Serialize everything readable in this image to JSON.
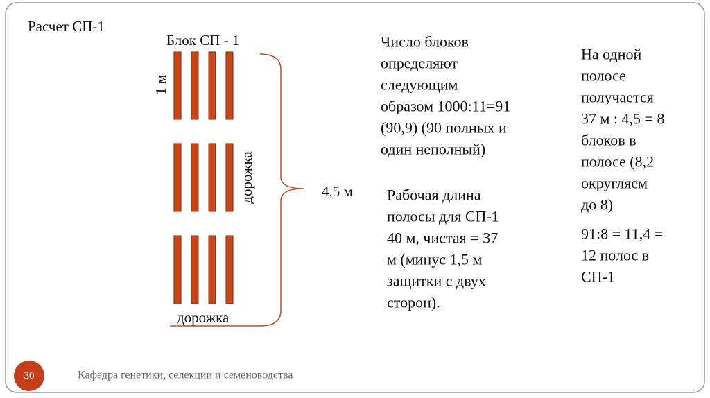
{
  "slide": {
    "title": "Расчет СП-1",
    "block_label": "Блок СП - 1",
    "width_label": "1 м",
    "side_path_label": "дорожка",
    "bottom_path_label": "дорожка",
    "span_label": "4,5 м",
    "block_count_text": [
      "Число блоков",
      "определяют",
      "следующим",
      "образом 1000:11=91",
      "(90,9) (90 полных и",
      "один неполный)"
    ],
    "strip_length_text": [
      "Рабочая длина",
      "полосы для СП-1",
      "40 м, чистая = 37",
      "м (минус 1,5 м",
      "защитки с двух",
      "сторон)."
    ],
    "per_strip_text": [
      "На одной",
      "полосе",
      "получается",
      "37 м : 4,5 = 8",
      "блоков в",
      "полосе (8,2",
      "округляем",
      "до 8)"
    ],
    "strip_count_text": [
      "91:8 = 11,4 =",
      "12 полос в",
      "СП-1"
    ]
  },
  "footer": {
    "page_number": "30",
    "department": "Кафедра генетики, селекции и семеноводства"
  }
}
